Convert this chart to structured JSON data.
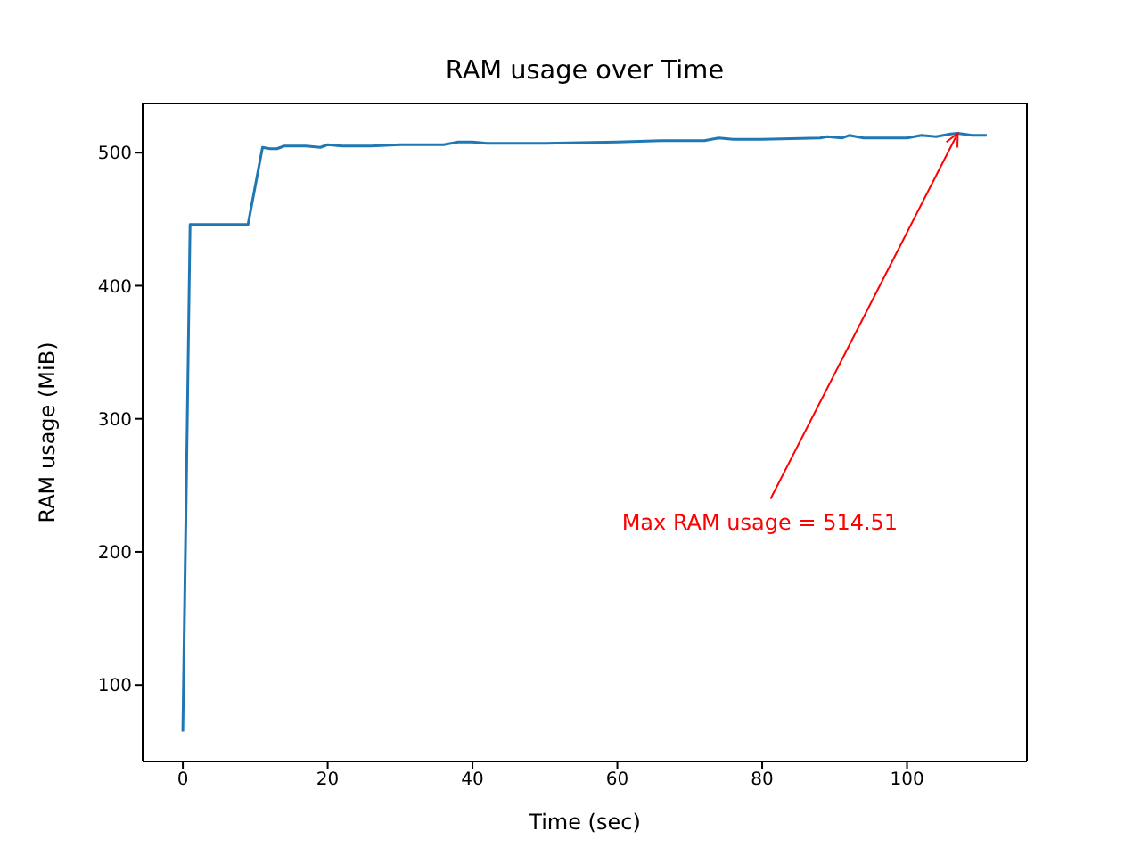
{
  "chart_data": {
    "type": "line",
    "title": "RAM usage over Time",
    "xlabel": "Time (sec)",
    "ylabel": "RAM usage (MiB)",
    "x": [
      0,
      1,
      9,
      11,
      12,
      13,
      14,
      17,
      19,
      20,
      22,
      26,
      30,
      36,
      38,
      40,
      42,
      50,
      60,
      66,
      72,
      74,
      76,
      80,
      88,
      89,
      91,
      92,
      94,
      100,
      102,
      104,
      106,
      107,
      109,
      111
    ],
    "series": [
      {
        "color": "#1f77b4",
        "values": [
          65,
          446,
          446,
          504,
          503,
          503,
          505,
          505,
          504,
          506,
          505,
          505,
          506,
          506,
          508,
          508,
          507,
          507,
          508,
          509,
          509,
          511,
          510,
          510,
          511,
          512,
          511,
          513,
          511,
          511,
          513,
          512,
          514,
          514.51,
          513,
          513
        ]
      }
    ],
    "xlim": [
      -5.55,
      116.55
    ],
    "ylim": [
      42.5,
      537
    ],
    "xticks": [
      0,
      20,
      40,
      60,
      80,
      100
    ],
    "yticks": [
      100,
      200,
      300,
      400,
      500
    ],
    "grid": false,
    "marker": "none",
    "line_style": "solid",
    "annotations": [
      {
        "text": "Max RAM usage = 514.51",
        "x": 107,
        "y": 514.51
      }
    ]
  }
}
